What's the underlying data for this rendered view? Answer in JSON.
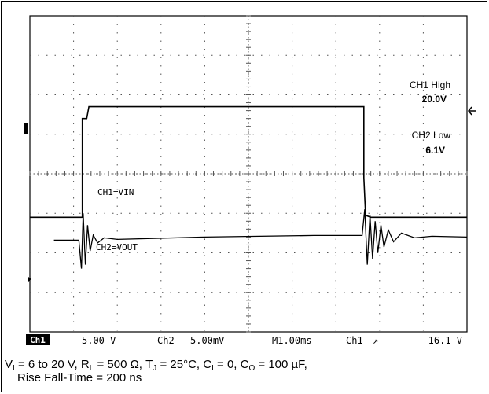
{
  "chart_data": {
    "type": "line",
    "x_divisions": 10,
    "y_divisions": 8,
    "grid": true,
    "series": [
      {
        "name": "CH1=VIN",
        "points": [
          [
            0,
            5.1
          ],
          [
            1.2,
            5.1
          ],
          [
            1.2,
            2.6
          ],
          [
            1.3,
            2.6
          ],
          [
            1.35,
            2.3
          ],
          [
            2.0,
            2.3
          ],
          [
            2.4,
            2.3
          ],
          [
            7.64,
            2.3
          ],
          [
            7.64,
            4.1
          ],
          [
            7.68,
            5.05
          ],
          [
            7.8,
            5.1
          ],
          [
            10,
            5.1
          ]
        ]
      },
      {
        "name": "CH2=VOUT",
        "points": [
          [
            0.55,
            5.68
          ],
          [
            1.12,
            5.68
          ],
          [
            1.18,
            6.4
          ],
          [
            1.22,
            5.0
          ],
          [
            1.27,
            6.3
          ],
          [
            1.32,
            5.3
          ],
          [
            1.38,
            5.95
          ],
          [
            1.45,
            5.55
          ],
          [
            1.55,
            5.75
          ],
          [
            1.7,
            5.62
          ],
          [
            2.0,
            5.66
          ],
          [
            4.0,
            5.6
          ],
          [
            6.5,
            5.56
          ],
          [
            7.6,
            5.56
          ],
          [
            7.66,
            4.9
          ],
          [
            7.72,
            6.3
          ],
          [
            7.78,
            5.05
          ],
          [
            7.84,
            6.15
          ],
          [
            7.9,
            5.2
          ],
          [
            7.96,
            6.0
          ],
          [
            8.03,
            5.3
          ],
          [
            8.1,
            5.85
          ],
          [
            8.2,
            5.42
          ],
          [
            8.32,
            5.72
          ],
          [
            8.5,
            5.5
          ],
          [
            8.8,
            5.62
          ],
          [
            9.2,
            5.58
          ],
          [
            10,
            5.6
          ]
        ]
      }
    ],
    "annotations": {
      "ch1_label": "CH1=VIN",
      "ch2_label": "CH2=VOUT",
      "ch1_high_title": "CH1 High",
      "ch1_high_value": "20.0V",
      "ch2_low_title": "CH2 Low",
      "ch2_low_value": "6.1V"
    },
    "status_bar": {
      "ch1_badge": "Ch1",
      "ch1_scale": "5.00 V",
      "ch2_label": "Ch2",
      "ch2_scale": "5.00mV",
      "timebase": "M1.00ms",
      "trigger_source": "Ch1",
      "trigger_symbol": "↗",
      "trigger_level": "16.1 V"
    }
  },
  "caption": {
    "line1_parts": [
      "V",
      "I",
      " = 6 to 20 V, R",
      "L",
      " = 500 Ω, T",
      "J",
      " = 25°C, C",
      "I",
      " = 0, C",
      "O",
      " = 100 µF,"
    ],
    "line2": "Rise Fall-Time = 200 ns"
  },
  "colors": {
    "trace": "#000000",
    "grid": "#555555",
    "background": "#ffffff"
  }
}
